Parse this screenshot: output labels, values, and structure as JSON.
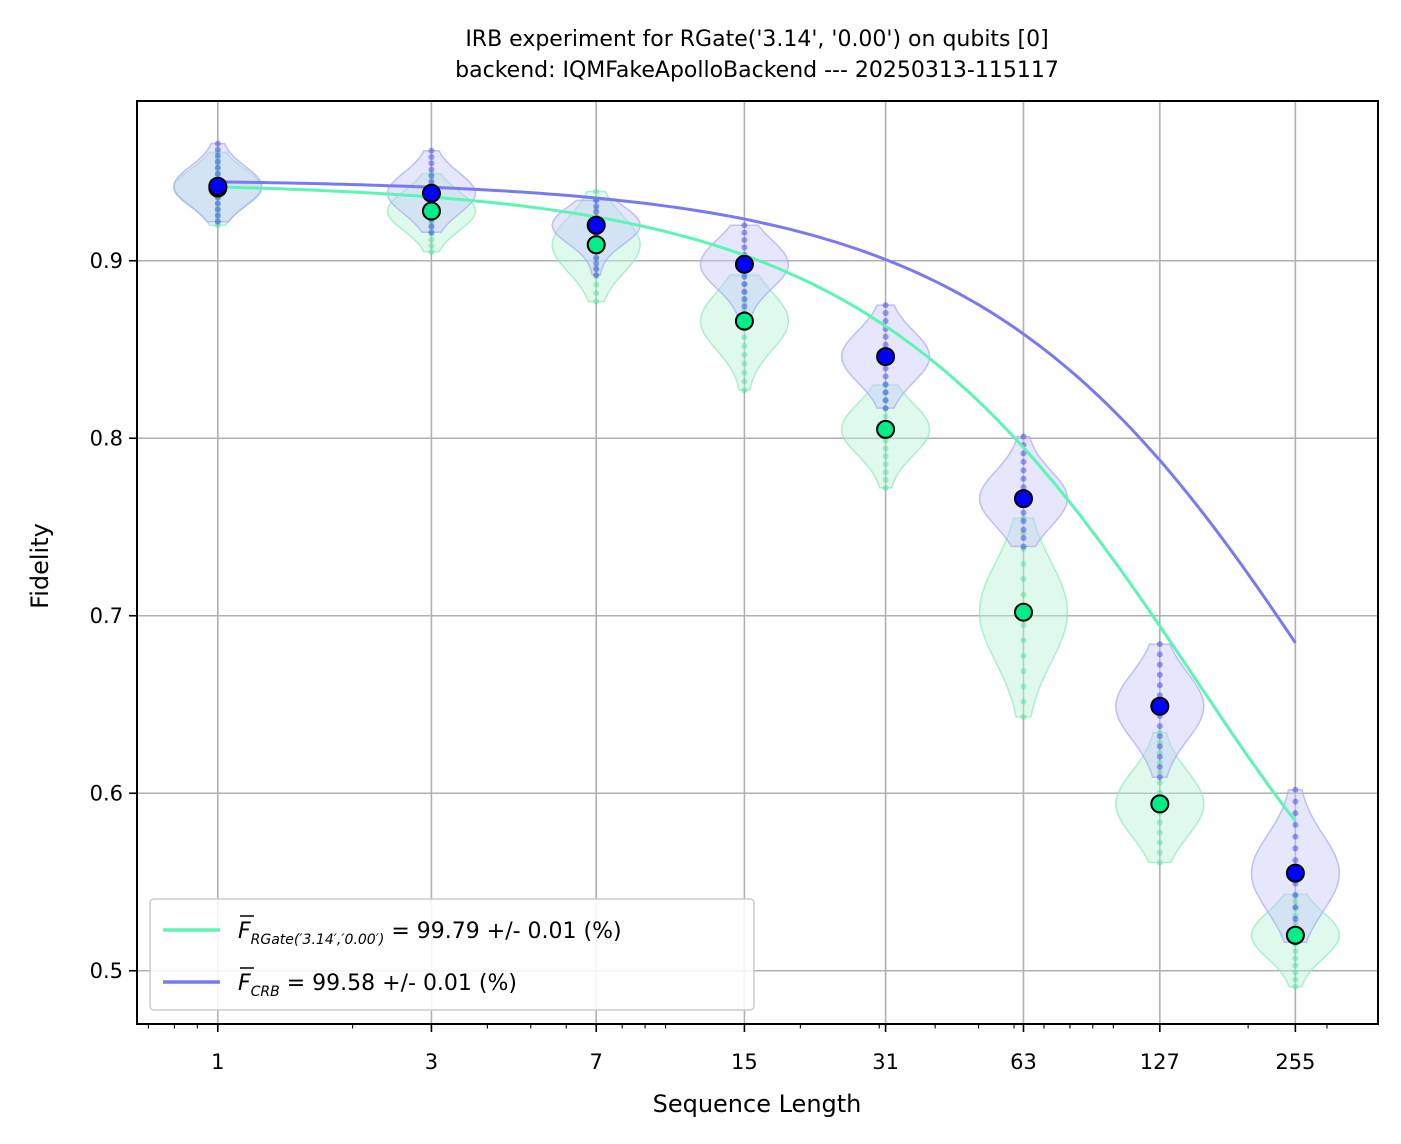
{
  "chart_data": {
    "type": "line",
    "title": "IRB experiment for RGate('3.14', '0.00') on qubits [0]",
    "subtitle": "backend: IQMFakeApolloBackend --- 20250313-115117",
    "xlabel": "Sequence Length",
    "ylabel": "Fidelity",
    "x_scale": "log",
    "x_ticks": [
      1,
      3,
      7,
      15,
      31,
      63,
      127,
      255
    ],
    "y_ticks": [
      0.5,
      0.6,
      0.7,
      0.8,
      0.9
    ],
    "ylim": [
      0.47,
      0.99
    ],
    "grid": true,
    "legend_position": "lower left",
    "series": [
      {
        "name": "F̄_{RGate('3.14','0.00')} = 99.79 +/- 0.01 (%)",
        "legend_main": "F",
        "legend_subscript": "RGate(′3.14′,′0.00′)",
        "legend_value": " = 99.79 +/- 0.01 (%)",
        "color": "#5cf5b4",
        "marker_color": "#00ee88",
        "x": [
          1,
          3,
          7,
          15,
          31,
          63,
          127,
          255
        ],
        "y": [
          0.941,
          0.928,
          0.909,
          0.866,
          0.805,
          0.702,
          0.594,
          0.52
        ],
        "y_min": [
          0.92,
          0.905,
          0.877,
          0.827,
          0.772,
          0.643,
          0.561,
          0.491
        ],
        "y_max": [
          0.961,
          0.949,
          0.939,
          0.892,
          0.83,
          0.755,
          0.634,
          0.543
        ],
        "fit_decay": 0.9935,
        "fit_amp": 0.4445,
        "fit_offset": 0.5
      },
      {
        "name": "F̄_CRB = 99.58 +/- 0.01 (%)",
        "legend_main": "F",
        "legend_subscript": "CRB",
        "legend_value": " = 99.58 +/- 0.01 (%)",
        "color": "#7a7af0",
        "marker_color": "#0000ff",
        "x": [
          1,
          3,
          7,
          15,
          31,
          63,
          127,
          255
        ],
        "y": [
          0.942,
          0.938,
          0.92,
          0.898,
          0.846,
          0.766,
          0.649,
          0.555
        ],
        "y_min": [
          0.922,
          0.916,
          0.892,
          0.866,
          0.817,
          0.739,
          0.609,
          0.516
        ],
        "y_max": [
          0.966,
          0.962,
          0.934,
          0.92,
          0.875,
          0.801,
          0.684,
          0.602
        ],
        "fit_decay": 0.99655,
        "fit_amp": 0.446,
        "fit_offset": 0.5
      }
    ]
  }
}
